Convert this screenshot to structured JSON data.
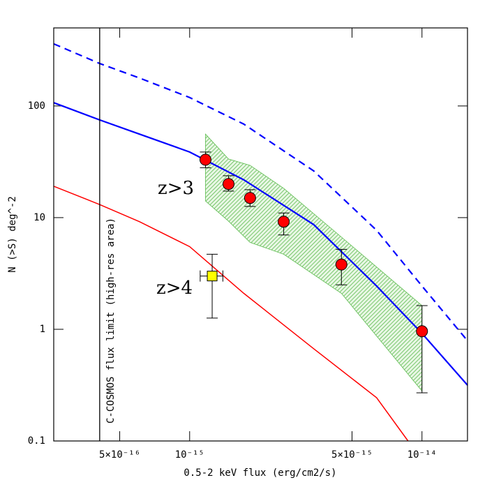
{
  "chart_data": {
    "type": "line",
    "xlabel": "0.5-2 keV flux (erg/cm2/s)",
    "ylabel": "N (>S) deg^-2",
    "xscale": "log",
    "yscale": "log",
    "xlim": [
      2.6e-16,
      1.57e-14
    ],
    "ylim": [
      0.1,
      500
    ],
    "xticks": [
      {
        "value": 5e-16,
        "label": "5×10⁻¹⁶"
      },
      {
        "value": 1e-15,
        "label": "10⁻¹⁵"
      },
      {
        "value": 5e-15,
        "label": "5×10⁻¹⁵"
      },
      {
        "value": 1e-14,
        "label": "10⁻¹⁴"
      }
    ],
    "yticks": [
      0.1,
      1,
      10,
      100
    ],
    "vline": {
      "value": 4.1e-16,
      "label": "C-COSMOS flux limit (high-res area)",
      "color": "#000000"
    },
    "annotations": [
      "z>3",
      "z>4"
    ],
    "series": [
      {
        "type": "band",
        "color": "#33aa33",
        "x": [
          1.17e-15,
          1.47e-15,
          1.82e-15,
          2.54e-15,
          4.5e-15,
          1e-14
        ],
        "lower": [
          14.1,
          9.3,
          6.0,
          4.7,
          2.1,
          0.28
        ],
        "upper": [
          56,
          33.5,
          29.4,
          18.3,
          6.7,
          1.63
        ]
      },
      {
        "type": "line",
        "color": "#0000ff",
        "dashed": false,
        "x": [
          2.6e-16,
          4.1e-16,
          6.08e-16,
          1e-15,
          1.71e-15,
          3.42e-15,
          6.38e-15,
          1e-14,
          1.57e-14
        ],
        "values": [
          107,
          75,
          56,
          38.7,
          21.8,
          8.66,
          2.44,
          0.92,
          0.316
        ]
      },
      {
        "type": "line",
        "color": "#0000ff",
        "dashed": true,
        "x": [
          2.6e-16,
          4.1e-16,
          6.08e-16,
          1e-15,
          1.71e-15,
          3.42e-15,
          6.38e-15,
          1e-14,
          1.57e-14
        ],
        "values": [
          360,
          240,
          178,
          119,
          68.8,
          26.2,
          7.7,
          2.44,
          0.79
        ]
      },
      {
        "type": "line",
        "color": "#ff0000",
        "dashed": false,
        "x": [
          2.6e-16,
          4.1e-16,
          6.08e-16,
          1e-15,
          1.71e-15,
          3.42e-15,
          6.38e-15,
          8.71e-15
        ],
        "values": [
          19.1,
          13.1,
          9.2,
          5.5,
          2.1,
          0.67,
          0.244,
          0.1
        ]
      },
      {
        "type": "points",
        "marker": "circle",
        "color": "#ff0000",
        "x": [
          1.17e-15,
          1.47e-15,
          1.82e-15,
          2.54e-15,
          4.5e-15,
          1e-14
        ],
        "values": [
          33,
          20,
          15,
          9.2,
          3.8,
          0.96
        ],
        "y_lower": [
          28,
          17.3,
          12.6,
          7,
          2.5,
          0.27
        ],
        "y_upper": [
          38.7,
          23.7,
          17.8,
          11,
          5.2,
          1.63
        ]
      },
      {
        "type": "points",
        "marker": "square",
        "color": "#ffff00",
        "x": [
          1.25e-15
        ],
        "values": [
          3
        ],
        "y_lower": [
          1.26
        ],
        "y_upper": [
          4.7
        ],
        "x_lower": [
          1.11e-15
        ],
        "x_upper": [
          1.39e-15
        ]
      }
    ]
  }
}
